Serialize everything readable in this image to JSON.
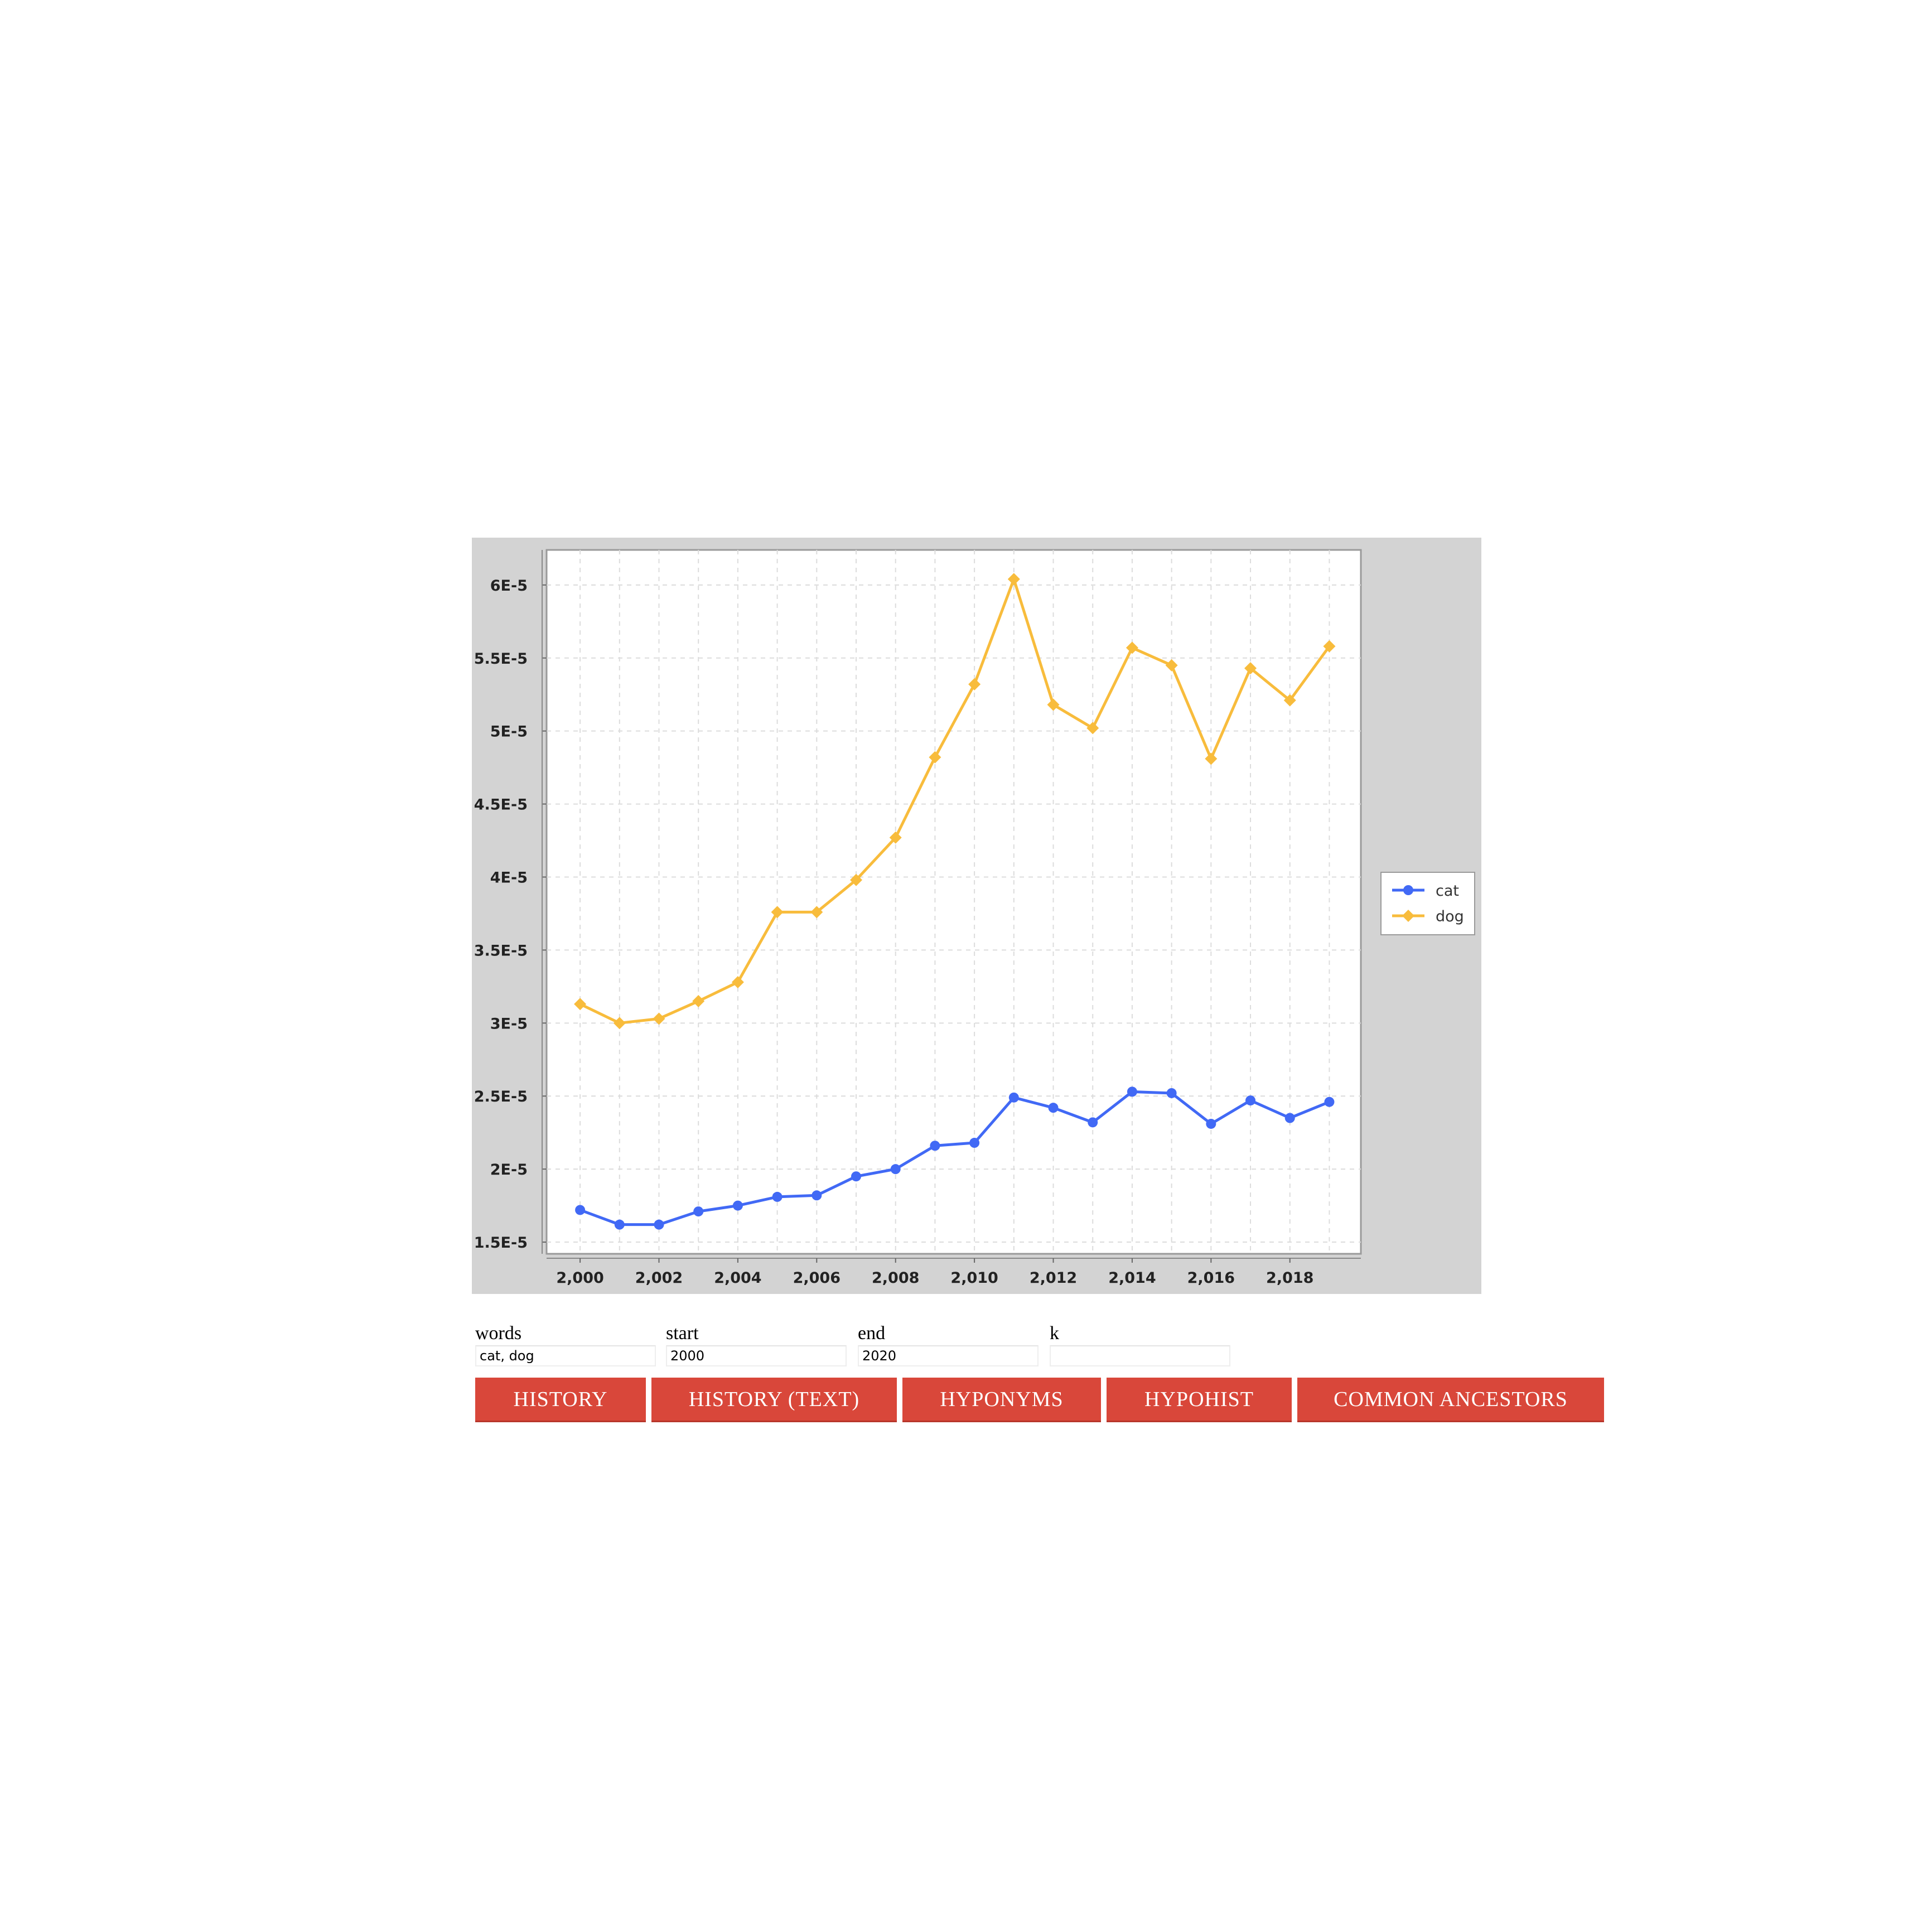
{
  "chart_data": {
    "type": "line",
    "x": [
      2000,
      2001,
      2002,
      2003,
      2004,
      2005,
      2006,
      2007,
      2008,
      2009,
      2010,
      2011,
      2012,
      2013,
      2014,
      2015,
      2016,
      2017,
      2018,
      2019
    ],
    "x_ticks": [
      2000,
      2002,
      2004,
      2006,
      2008,
      2010,
      2012,
      2014,
      2016,
      2018
    ],
    "x_tick_labels": [
      "2,000",
      "2,002",
      "2,004",
      "2,006",
      "2,008",
      "2,010",
      "2,012",
      "2,014",
      "2,016",
      "2,018"
    ],
    "y_ticks": [
      1.5e-05,
      2e-05,
      2.5e-05,
      3e-05,
      3.5e-05,
      4e-05,
      4.5e-05,
      5e-05,
      5.5e-05,
      6e-05
    ],
    "y_tick_labels": [
      "1.5E-5",
      "2E-5",
      "2.5E-5",
      "3E-5",
      "3.5E-5",
      "4E-5",
      "4.5E-5",
      "5E-5",
      "5.5E-5",
      "6E-5"
    ],
    "xlim": [
      1999.15,
      2019.8
    ],
    "ylim": [
      1.42e-05,
      6.24e-05
    ],
    "grid": true,
    "legend_position": "right",
    "series": [
      {
        "name": "cat",
        "color": "#4169f5",
        "marker": "circle",
        "values": [
          1.72e-05,
          1.62e-05,
          1.62e-05,
          1.71e-05,
          1.75e-05,
          1.81e-05,
          1.82e-05,
          1.95e-05,
          2e-05,
          2.16e-05,
          2.18e-05,
          2.49e-05,
          2.42e-05,
          2.32e-05,
          2.53e-05,
          2.52e-05,
          2.31e-05,
          2.47e-05,
          2.35e-05,
          2.46e-05
        ]
      },
      {
        "name": "dog",
        "color": "#f8bc3c",
        "marker": "diamond",
        "values": [
          3.13e-05,
          3e-05,
          3.03e-05,
          3.15e-05,
          3.28e-05,
          3.76e-05,
          3.76e-05,
          3.98e-05,
          4.27e-05,
          4.82e-05,
          5.32e-05,
          6.04e-05,
          5.18e-05,
          5.02e-05,
          5.57e-05,
          5.45e-05,
          4.81e-05,
          5.43e-05,
          5.21e-05,
          5.58e-05
        ]
      }
    ]
  },
  "form": {
    "words_label": "words",
    "words_value": "cat, dog",
    "start_label": "start",
    "start_value": "2000",
    "end_label": "end",
    "end_value": "2020",
    "k_label": "k",
    "k_value": ""
  },
  "buttons": {
    "history": "HISTORY",
    "history_text": "HISTORY (TEXT)",
    "hyponyms": "HYPONYMS",
    "hypohist": "HYPOHIST",
    "common_ancestors": "COMMON ANCESTORS"
  },
  "colors": {
    "button_bg": "#d9473a",
    "chart_panel_bg": "#d3d3d3"
  }
}
